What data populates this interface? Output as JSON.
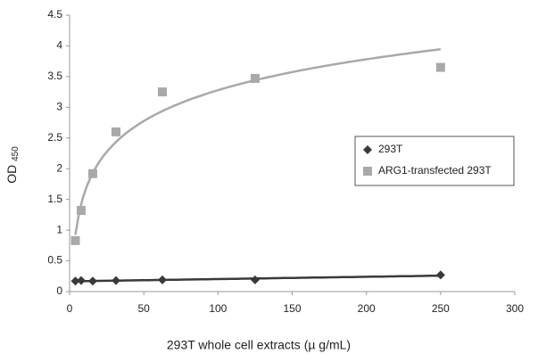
{
  "chart_data": {
    "type": "scatter",
    "xlabel": "293T whole cell extracts (µ g/mL)",
    "ylabel": "OD",
    "ylabel_subscript": "450",
    "x": [
      3.9,
      7.8,
      15.6,
      31.25,
      62.5,
      125,
      250
    ],
    "series": [
      {
        "name": "293T",
        "color": "#3a3a3a",
        "marker": "diamond",
        "trendline": "linear",
        "values": [
          0.17,
          0.18,
          0.17,
          0.18,
          0.19,
          0.19,
          0.27
        ]
      },
      {
        "name": "ARG1-transfected 293T",
        "color": "#a9a9a9",
        "marker": "square",
        "trendline": "logarithmic",
        "values": [
          0.83,
          1.32,
          1.92,
          2.6,
          3.25,
          3.47,
          3.65
        ]
      }
    ],
    "xlim": [
      0,
      300
    ],
    "xticks": [
      0,
      50,
      100,
      150,
      200,
      250,
      300
    ],
    "ylim": [
      0,
      4.5
    ],
    "yticks": [
      0,
      0.5,
      1,
      1.5,
      2,
      2.5,
      3,
      3.5,
      4,
      4.5
    ],
    "grid": false,
    "legend": "right"
  }
}
